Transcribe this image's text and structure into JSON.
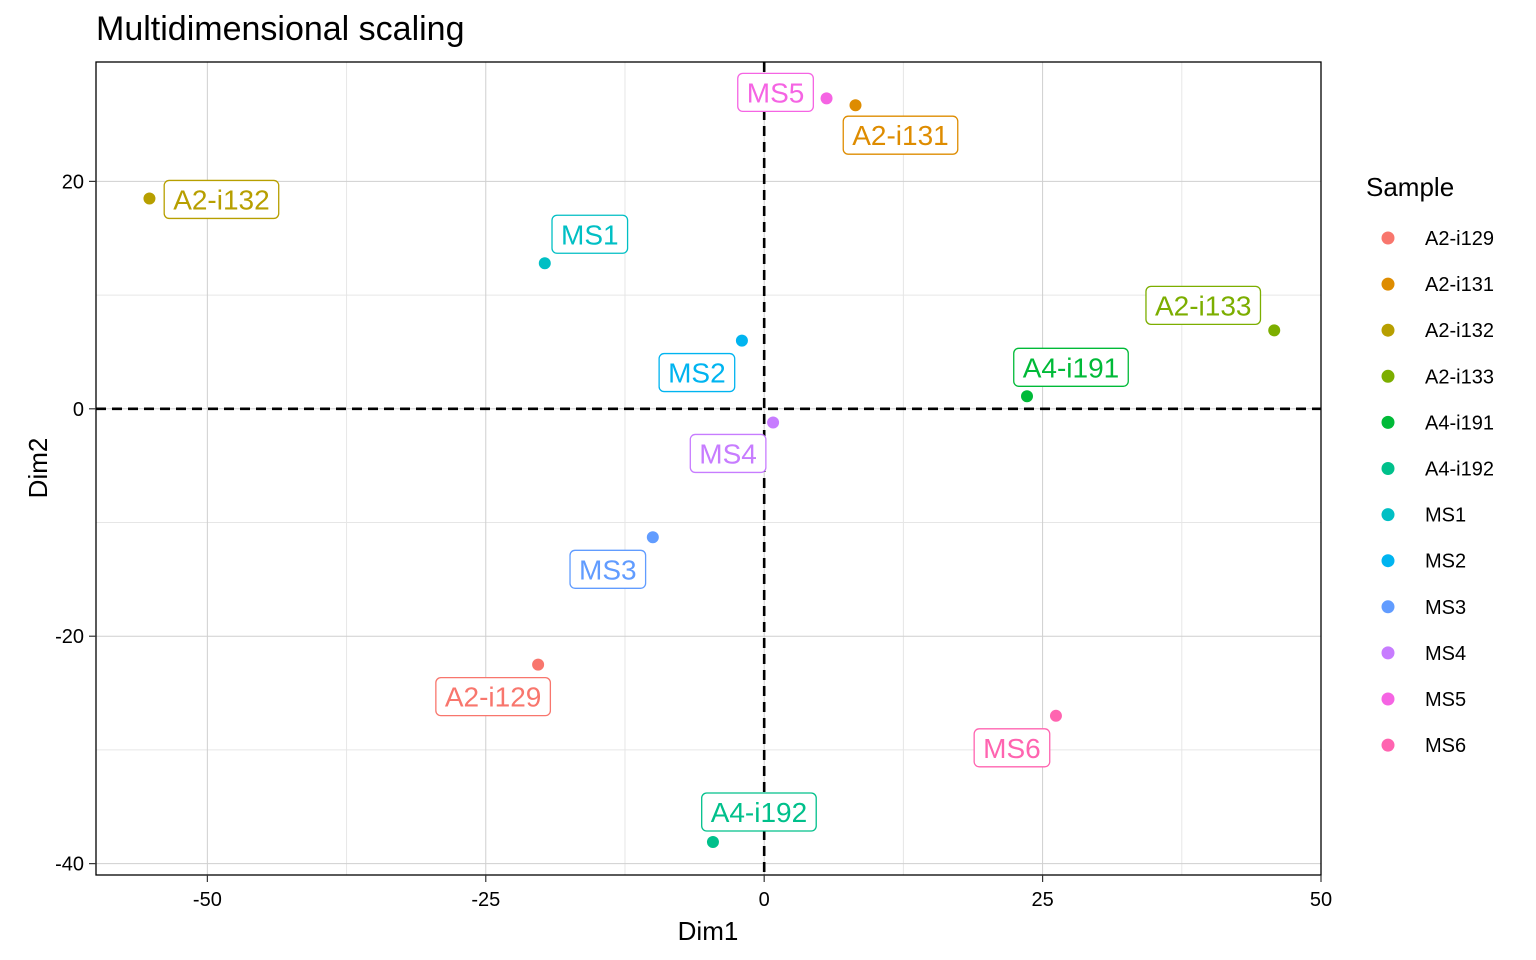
{
  "chart_data": {
    "type": "scatter",
    "title": "Multidimensional scaling",
    "xlabel": "Dim1",
    "ylabel": "Dim2",
    "xlim": [
      -60,
      50
    ],
    "ylim": [
      -41,
      30.5
    ],
    "x_ticks": [
      -50,
      -25,
      0,
      25,
      50
    ],
    "y_ticks": [
      -40,
      -20,
      0,
      20
    ],
    "grid": true,
    "reference_lines": {
      "x": 0,
      "y": 0,
      "style": "dashed"
    },
    "legend": {
      "title": "Sample",
      "position": "right"
    },
    "points": [
      {
        "name": "A2-i129",
        "x": -20.3,
        "y": -22.5,
        "color": "#F8766D"
      },
      {
        "name": "A2-i131",
        "x": 8.2,
        "y": 26.7,
        "color": "#DE8C00"
      },
      {
        "name": "A2-i132",
        "x": -55.2,
        "y": 18.5,
        "color": "#B79F00"
      },
      {
        "name": "A2-i133",
        "x": 45.8,
        "y": 6.9,
        "color": "#7CAE00"
      },
      {
        "name": "A4-i191",
        "x": 23.6,
        "y": 1.1,
        "color": "#00BA38"
      },
      {
        "name": "A4-i192",
        "x": -4.6,
        "y": -38.1,
        "color": "#00C08B"
      },
      {
        "name": "MS1",
        "x": -19.7,
        "y": 12.8,
        "color": "#00BFC4"
      },
      {
        "name": "MS2",
        "x": -2.0,
        "y": 6.0,
        "color": "#00B4F0"
      },
      {
        "name": "MS3",
        "x": -10.0,
        "y": -11.3,
        "color": "#619CFF"
      },
      {
        "name": "MS4",
        "x": 0.8,
        "y": -1.2,
        "color": "#C77CFF"
      },
      {
        "name": "MS5",
        "x": 5.6,
        "y": 27.3,
        "color": "#F564E3"
      },
      {
        "name": "MS6",
        "x": 26.2,
        "y": -27.0,
        "color": "#FF64B0"
      }
    ]
  }
}
